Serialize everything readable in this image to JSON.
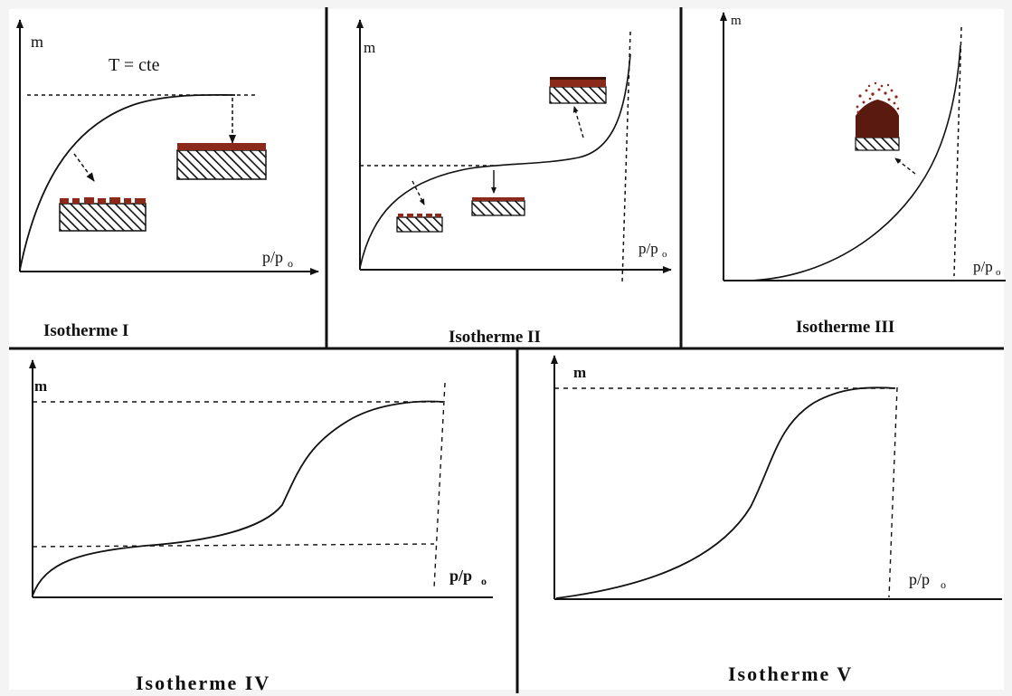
{
  "panels": [
    {
      "id": "I",
      "title": "Isotherme I",
      "y_label": "m",
      "x_label": "p/p",
      "x_label_sub": "o",
      "note": "T = cte"
    },
    {
      "id": "II",
      "title": "Isotherme II",
      "y_label": "m",
      "x_label": "p/p",
      "x_label_sub": "o"
    },
    {
      "id": "III",
      "title": "Isotherme III",
      "y_label": "m",
      "x_label": "p/p",
      "x_label_sub": "o"
    },
    {
      "id": "IV",
      "title": "Isotherme IV",
      "y_label": "m",
      "x_label": "p/p",
      "x_label_sub": "o"
    },
    {
      "id": "V",
      "title": "Isotherme V",
      "y_label": "m",
      "x_label": "p/p",
      "x_label_sub": "o"
    }
  ],
  "colors": {
    "background": "#f4f4f4",
    "panel_background": "#ffffff",
    "line": "#111111",
    "adsorbate": "#8b2a1a",
    "substrate_hatch": "#111111"
  }
}
